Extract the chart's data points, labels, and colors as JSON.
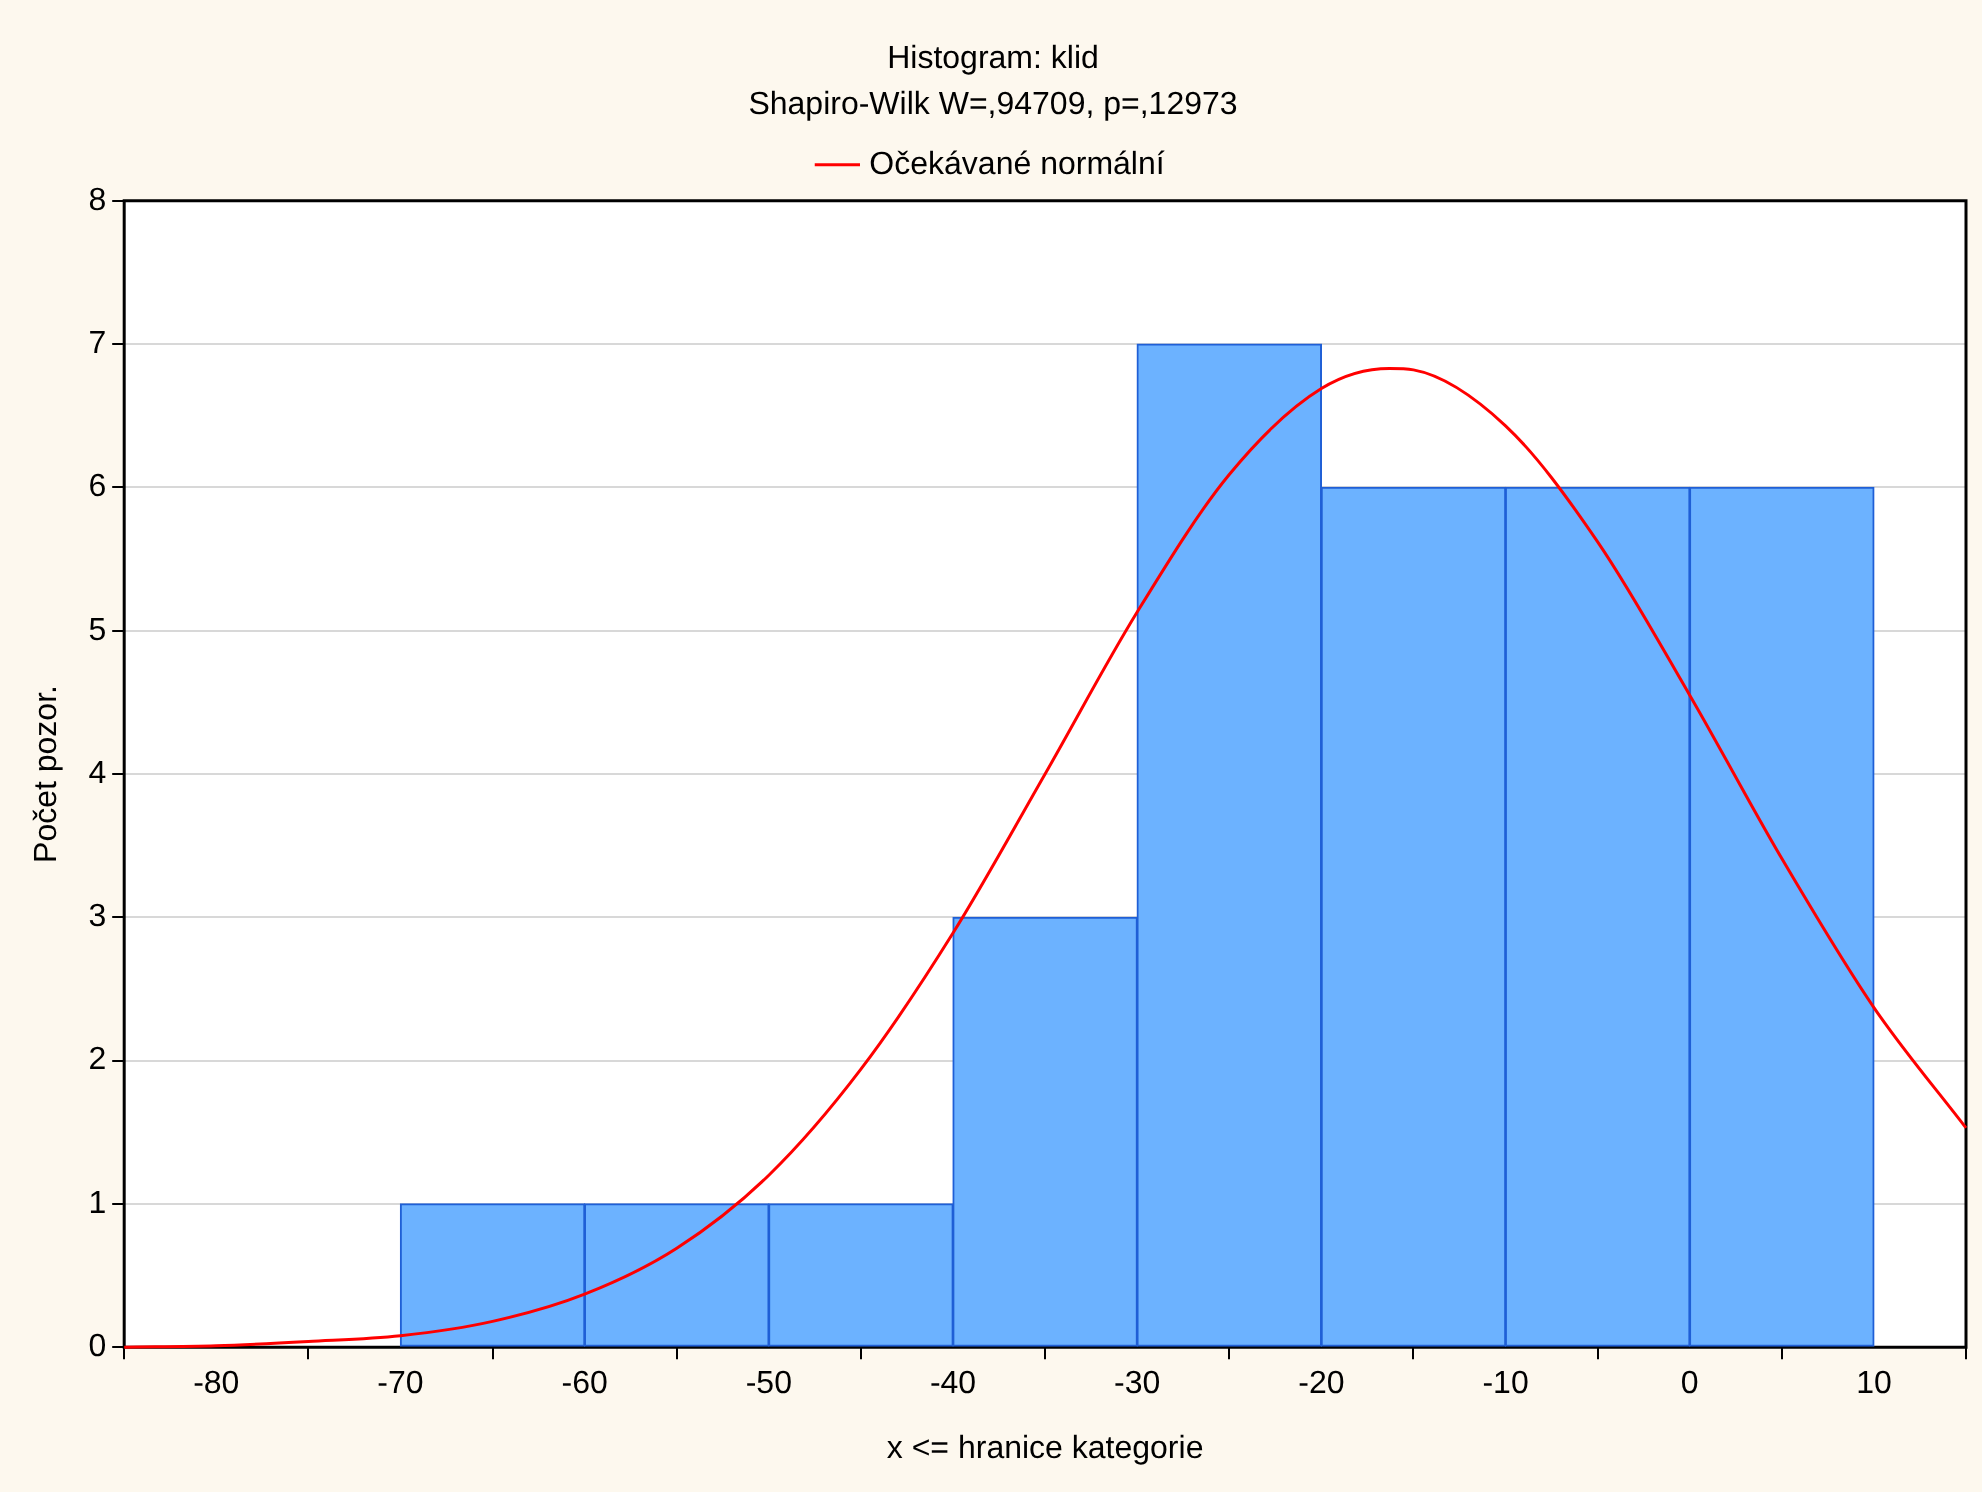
{
  "chart_data": {
    "type": "histogram",
    "title": "Histogram: klid",
    "subtitle": "Shapiro-Wilk W=,94709, p=,12973",
    "xlabel": "x <= hranice kategorie",
    "ylabel": "Počet pozor.",
    "bins": [
      -70,
      -60,
      -50,
      -40,
      -30,
      -20,
      -10,
      0,
      10
    ],
    "values": [
      1,
      1,
      1,
      3,
      7,
      6,
      6,
      6
    ],
    "color": "#6cb2ff",
    "series": [
      {
        "name": "Očekávané normální",
        "type": "line",
        "color": "#ff0000",
        "x": [
          -85,
          -80,
          -75,
          -70,
          -65,
          -60,
          -55,
          -50,
          -45,
          -40,
          -35,
          -30,
          -25,
          -20,
          -16.3,
          -15,
          -10,
          -5,
          0,
          5,
          10,
          15
        ],
        "values": [
          0,
          0.01,
          0.04,
          0.08,
          0.18,
          0.37,
          0.69,
          1.2,
          1.94,
          2.89,
          4.0,
          5.13,
          6.09,
          6.69,
          6.83,
          6.82,
          6.43,
          5.62,
          4.55,
          3.41,
          2.37,
          1.53
        ]
      }
    ],
    "xlim": [
      -85,
      15
    ],
    "xticks": [
      -80,
      -70,
      -60,
      -50,
      -40,
      -30,
      -20,
      -10,
      0,
      10
    ],
    "ylim": [
      0,
      8
    ],
    "yticks": [
      0,
      1,
      2,
      3,
      4,
      5,
      6,
      7,
      8
    ],
    "grid": "y",
    "legend": "top",
    "marker": "none",
    "line_style": "solid"
  }
}
